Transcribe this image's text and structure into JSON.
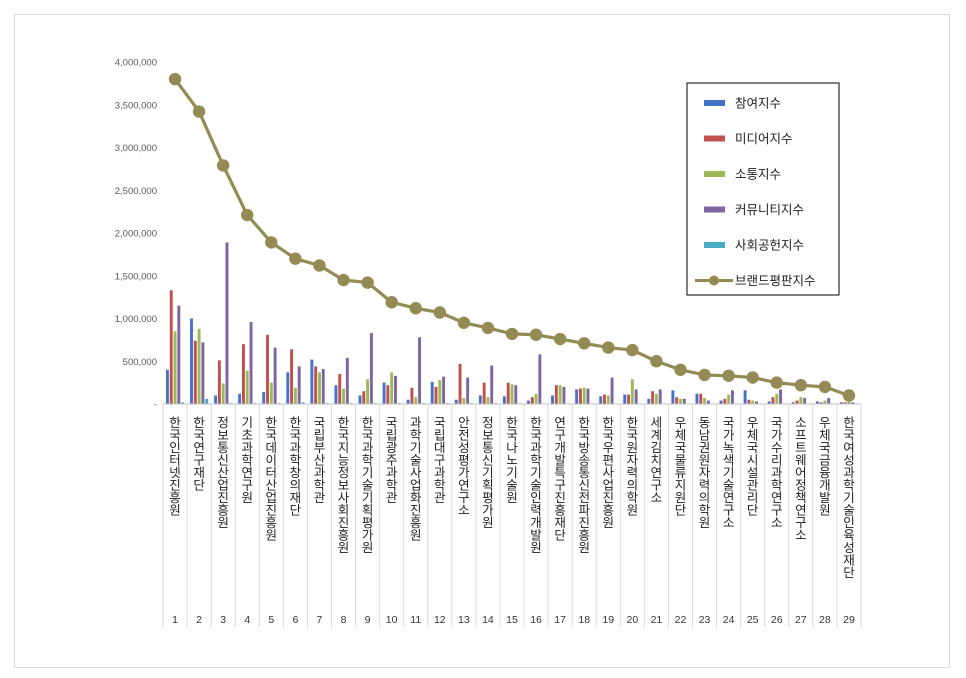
{
  "chart_data": {
    "type": "bar",
    "title": "",
    "xlabel": "",
    "ylabel": "",
    "ylim": [
      0,
      4000000
    ],
    "yticks": [
      0,
      500000,
      1000000,
      1500000,
      2000000,
      2500000,
      3000000,
      3500000,
      4000000
    ],
    "ytick_labels": [
      "-",
      "500,000",
      "1,000,000",
      "1,500,000",
      "2,000,000",
      "2,500,000",
      "3,000,000",
      "3,500,000",
      "4,000,000"
    ],
    "grid": false,
    "legend_position": "top-right",
    "numbers": [
      "1",
      "2",
      "3",
      "4",
      "5",
      "6",
      "7",
      "8",
      "9",
      "10",
      "11",
      "12",
      "13",
      "14",
      "15",
      "16",
      "17",
      "18",
      "19",
      "20",
      "21",
      "22",
      "23",
      "24",
      "25",
      "26",
      "27",
      "28",
      "29"
    ],
    "categories": [
      "한국인터넷진흥원",
      "한국연구재단",
      "정보통신산업진흥원",
      "기초과학연구원",
      "한국데이터산업진흥원",
      "한국과학창의재단",
      "국립부산과학관",
      "한국지능정보사회진흥원",
      "한국과학기술기획평가원",
      "국립광주과학관",
      "과학기술사업화진흥원",
      "국립대구과학관",
      "안전성평가연구소",
      "정보통신기획평가원",
      "한국나노기술원",
      "한국과학기술인력개발원",
      "연구개발특구진흥재단",
      "한국방송통신전파진흥원",
      "한국우편사업진흥원",
      "한국원자력의학원",
      "세계김치연구소",
      "우체국물류지원단",
      "동남권원자력의학원",
      "국가녹색기술연구소",
      "우체국시설관리단",
      "국가수리과학연구소",
      "소프트웨어정책연구소",
      "우체국금융개발원",
      "한국여성과학기술인육성재단"
    ],
    "series": [
      {
        "name": "참여지수",
        "color": "#4472c4",
        "kind": "bar",
        "values": [
          400000,
          1000000,
          100000,
          120000,
          140000,
          370000,
          520000,
          220000,
          100000,
          250000,
          50000,
          260000,
          50000,
          100000,
          90000,
          40000,
          100000,
          170000,
          90000,
          110000,
          60000,
          160000,
          120000,
          40000,
          160000,
          30000,
          20000,
          30000,
          20000
        ]
      },
      {
        "name": "미디어지수",
        "color": "#c0504d",
        "kind": "bar",
        "values": [
          1330000,
          740000,
          510000,
          700000,
          810000,
          640000,
          440000,
          350000,
          150000,
          220000,
          190000,
          200000,
          470000,
          250000,
          250000,
          80000,
          220000,
          180000,
          110000,
          110000,
          150000,
          80000,
          120000,
          60000,
          50000,
          80000,
          40000,
          20000,
          20000
        ]
      },
      {
        "name": "소통지수",
        "color": "#9bbb59",
        "kind": "bar",
        "values": [
          850000,
          880000,
          240000,
          390000,
          250000,
          190000,
          370000,
          180000,
          290000,
          370000,
          80000,
          280000,
          70000,
          80000,
          230000,
          120000,
          220000,
          190000,
          100000,
          290000,
          120000,
          60000,
          70000,
          110000,
          40000,
          120000,
          80000,
          40000,
          30000
        ]
      },
      {
        "name": "커뮤니티지수",
        "color": "#8064a2",
        "kind": "bar",
        "values": [
          1150000,
          720000,
          1890000,
          960000,
          660000,
          440000,
          410000,
          540000,
          830000,
          330000,
          780000,
          320000,
          310000,
          450000,
          220000,
          580000,
          200000,
          180000,
          310000,
          170000,
          170000,
          60000,
          40000,
          160000,
          30000,
          170000,
          70000,
          70000,
          20000
        ]
      },
      {
        "name": "사회공헌지수",
        "color": "#4bacc6",
        "kind": "bar",
        "values": [
          20000,
          60000,
          10000,
          10000,
          10000,
          20000,
          10000,
          10000,
          10000,
          10000,
          10000,
          10000,
          10000,
          10000,
          5000,
          5000,
          5000,
          5000,
          5000,
          5000,
          5000,
          5000,
          5000,
          5000,
          5000,
          5000,
          5000,
          5000,
          5000
        ]
      },
      {
        "name": "브랜드평판지수",
        "color": "#948a54",
        "kind": "line",
        "values": [
          3800000,
          3420000,
          2790000,
          2210000,
          1890000,
          1700000,
          1620000,
          1450000,
          1420000,
          1190000,
          1120000,
          1070000,
          950000,
          890000,
          820000,
          810000,
          760000,
          710000,
          660000,
          630000,
          500000,
          400000,
          340000,
          330000,
          310000,
          250000,
          220000,
          200000,
          100000
        ]
      }
    ]
  }
}
